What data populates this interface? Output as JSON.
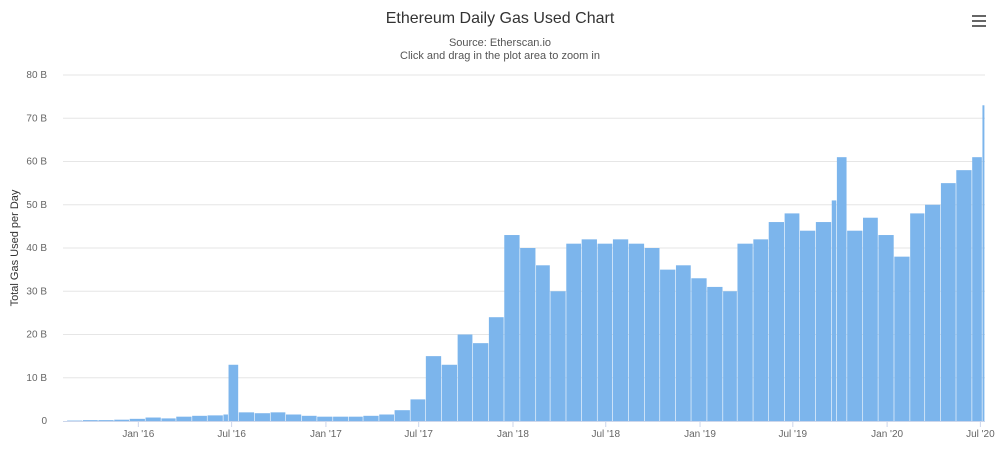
{
  "header": {
    "title": "Ethereum Daily Gas Used Chart",
    "subtitle_source": "Source: Etherscan.io",
    "subtitle_hint": "Click and drag in the plot area to zoom in",
    "menu_icon": "hamburger-menu-icon"
  },
  "colors": {
    "bar": "#7cb5ec",
    "grid": "#e6e6e6",
    "axis_text": "#666666",
    "title": "#333333"
  },
  "chart_data": {
    "type": "bar",
    "title": "Ethereum Daily Gas Used Chart",
    "subtitle": "Source: Etherscan.io",
    "xlabel": "",
    "ylabel": "Total Gas Used per Day",
    "ylim": [
      0,
      80
    ],
    "y_unit": "B",
    "yticks": [
      {
        "value": 0,
        "label": "0"
      },
      {
        "value": 10,
        "label": "10 B"
      },
      {
        "value": 20,
        "label": "20 B"
      },
      {
        "value": 30,
        "label": "30 B"
      },
      {
        "value": 40,
        "label": "40 B"
      },
      {
        "value": 50,
        "label": "50 B"
      },
      {
        "value": 60,
        "label": "60 B"
      },
      {
        "value": 70,
        "label": "70 B"
      },
      {
        "value": 80,
        "label": "80 B"
      }
    ],
    "xlim": [
      "2015-08-07",
      "2020-07-10"
    ],
    "xticks": [
      {
        "date": "2016-01-01",
        "label": "Jan '16"
      },
      {
        "date": "2016-07-01",
        "label": "Jul '16"
      },
      {
        "date": "2017-01-01",
        "label": "Jan '17"
      },
      {
        "date": "2017-07-01",
        "label": "Jul '17"
      },
      {
        "date": "2018-01-01",
        "label": "Jan '18"
      },
      {
        "date": "2018-07-01",
        "label": "Jul '18"
      },
      {
        "date": "2019-01-01",
        "label": "Jan '19"
      },
      {
        "date": "2019-07-01",
        "label": "Jul '19"
      },
      {
        "date": "2020-01-01",
        "label": "Jan '20"
      },
      {
        "date": "2020-07-01",
        "label": "Jul '20"
      }
    ],
    "grid": true,
    "legend": false,
    "series": [
      {
        "x": [
          "2015-08-15",
          "2015-09-15",
          "2015-10-15",
          "2015-11-15",
          "2015-12-15",
          "2016-01-15",
          "2016-02-15",
          "2016-03-15",
          "2016-04-15",
          "2016-05-15",
          "2016-06-15",
          "2016-06-25",
          "2016-07-15",
          "2016-08-15",
          "2016-09-15",
          "2016-10-15",
          "2016-11-15",
          "2016-12-15",
          "2017-01-15",
          "2017-02-15",
          "2017-03-15",
          "2017-04-15",
          "2017-05-15",
          "2017-06-15",
          "2017-07-15",
          "2017-08-15",
          "2017-09-15",
          "2017-10-15",
          "2017-11-15",
          "2017-12-15",
          "2018-01-15",
          "2018-02-15",
          "2018-03-15",
          "2018-04-15",
          "2018-05-15",
          "2018-06-15",
          "2018-07-15",
          "2018-08-15",
          "2018-09-15",
          "2018-10-15",
          "2018-11-15",
          "2018-12-15",
          "2019-01-15",
          "2019-02-15",
          "2019-03-15",
          "2019-04-15",
          "2019-05-15",
          "2019-06-15",
          "2019-07-15",
          "2019-08-15",
          "2019-09-15",
          "2019-09-25",
          "2019-10-15",
          "2019-11-15",
          "2019-12-15",
          "2020-01-15",
          "2020-02-15",
          "2020-03-15",
          "2020-04-15",
          "2020-05-15",
          "2020-06-15",
          "2020-07-05"
        ],
        "y": [
          0.1,
          0.2,
          0.2,
          0.3,
          0.5,
          0.8,
          0.6,
          1.0,
          1.2,
          1.3,
          1.5,
          13,
          2.0,
          1.8,
          2.0,
          1.5,
          1.2,
          1.0,
          1.0,
          1.0,
          1.2,
          1.5,
          2.5,
          5,
          15,
          13,
          20,
          18,
          24,
          43,
          40,
          36,
          30,
          41,
          42,
          41,
          42,
          41,
          40,
          35,
          36,
          33,
          31,
          30,
          41,
          42,
          46,
          48,
          44,
          46,
          51,
          61,
          44,
          47,
          43,
          38,
          48,
          50,
          55,
          58,
          61,
          73
        ]
      }
    ]
  }
}
